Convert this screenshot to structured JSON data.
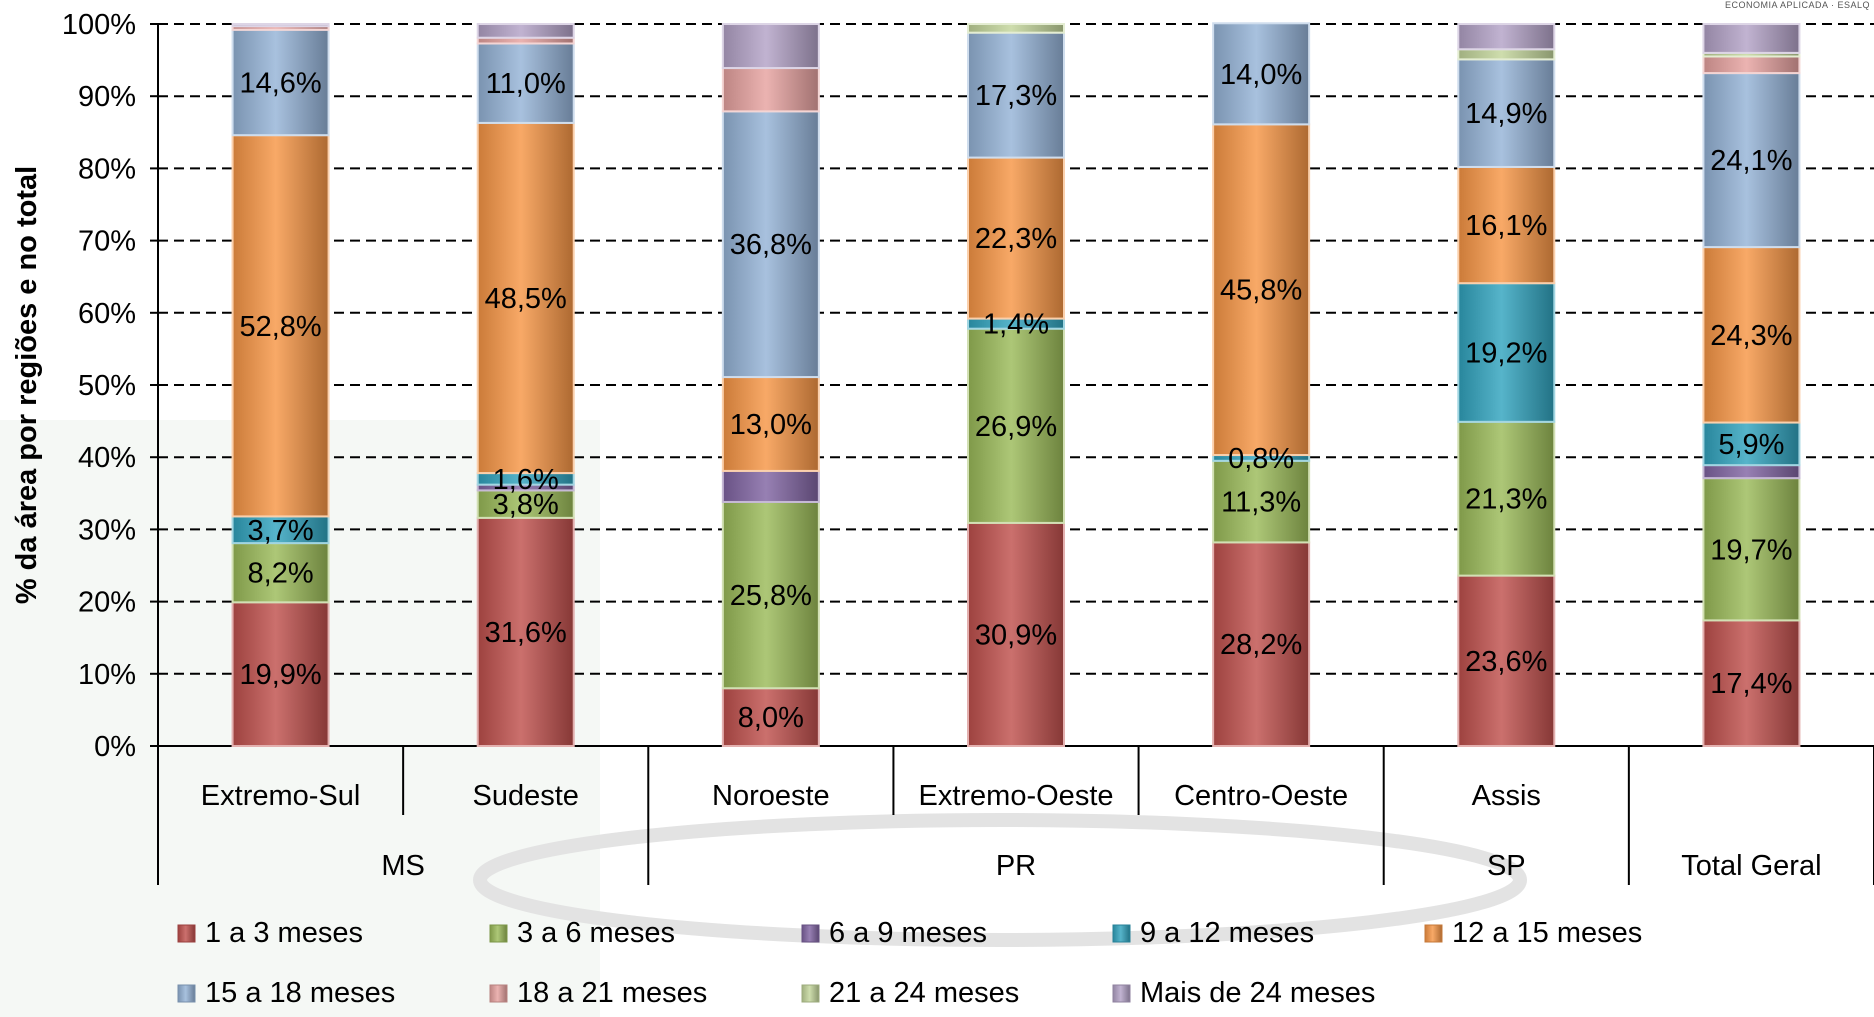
{
  "brand_text": "ECONOMIA APLICADA · ESALQ",
  "chart_data": {
    "type": "bar",
    "stacked": true,
    "percent_stacked": true,
    "title": "",
    "xlabel": "",
    "ylabel": "% da área por regiões e no total",
    "ylim": [
      0,
      100
    ],
    "yticks": [
      "0%",
      "10%",
      "20%",
      "30%",
      "40%",
      "50%",
      "60%",
      "70%",
      "80%",
      "90%",
      "100%"
    ],
    "grid": "horizontal dashed",
    "legend_position": "bottom",
    "categories": [
      "Extremo-Sul",
      "Sudeste",
      "Noroeste",
      "Extremo-Oeste",
      "Centro-Oeste",
      "Assis",
      "Total Geral"
    ],
    "groups": [
      {
        "label": "MS",
        "categories": [
          "Extremo-Sul",
          "Sudeste"
        ]
      },
      {
        "label": "PR",
        "categories": [
          "Noroeste",
          "Extremo-Oeste",
          "Centro-Oeste"
        ]
      },
      {
        "label": "SP",
        "categories": [
          "Assis"
        ]
      },
      {
        "label": "Total Geral",
        "categories": [
          ""
        ]
      }
    ],
    "bar_labels": [
      "Extremo-Sul",
      "Sudeste",
      "Noroeste",
      "Extremo-Oeste",
      "Centro-Oeste",
      "Assis",
      ""
    ],
    "series": [
      {
        "name": "1 a 3 meses",
        "color": "#C0504D",
        "values": [
          19.9,
          31.6,
          8.0,
          30.9,
          28.2,
          23.6,
          17.4
        ],
        "labels": [
          "19,9%",
          "31,6%",
          "8,0%",
          "30,9%",
          "28,2%",
          "23,6%",
          "17,4%"
        ]
      },
      {
        "name": "3 a 6 meses",
        "color": "#9BBB59",
        "values": [
          8.2,
          3.8,
          25.8,
          26.9,
          11.3,
          21.3,
          19.7
        ],
        "labels": [
          "8,2%",
          "3,8%",
          "25,8%",
          "26,9%",
          "11,3%",
          "21,3%",
          "19,7%"
        ]
      },
      {
        "name": "6 a 9 meses",
        "color": "#8064A2",
        "values": [
          0.0,
          0.8,
          4.3,
          0.0,
          0.0,
          0.0,
          1.8
        ],
        "labels": [
          "",
          "",
          "",
          "",
          "",
          "",
          ""
        ]
      },
      {
        "name": "9 a 12 meses",
        "color": "#31A3BE",
        "values": [
          3.7,
          1.6,
          0.0,
          1.4,
          0.8,
          19.2,
          5.9
        ],
        "labels": [
          "3,7%",
          "1,6%",
          "",
          "1,4%",
          "0,8%",
          "19,2%",
          "5,9%"
        ]
      },
      {
        "name": "12 a 15 meses",
        "color": "#F79646",
        "values": [
          52.8,
          48.5,
          13.0,
          22.3,
          45.8,
          16.1,
          24.3
        ],
        "labels": [
          "52,8%",
          "48,5%",
          "13,0%",
          "22,3%",
          "45,8%",
          "16,1%",
          "24,3%"
        ]
      },
      {
        "name": "15 a 18 meses",
        "color": "#95B3D7",
        "values": [
          14.6,
          11.0,
          36.8,
          17.3,
          14.0,
          14.9,
          24.1
        ],
        "labels": [
          "14,6%",
          "11,0%",
          "36,8%",
          "17,3%",
          "14,0%",
          "14,9%",
          "24,1%"
        ]
      },
      {
        "name": "18 a 21 meses",
        "color": "#E6A2A0",
        "values": [
          0.5,
          0.8,
          6.0,
          0.0,
          0.0,
          0.0,
          2.3
        ],
        "labels": [
          "",
          "",
          "",
          "",
          "",
          "",
          ""
        ]
      },
      {
        "name": "21 a 24 meses",
        "color": "#C3D69B",
        "values": [
          0.0,
          0.0,
          0.0,
          1.2,
          0.0,
          1.4,
          0.5
        ],
        "labels": [
          "",
          "",
          "",
          "",
          "",
          "",
          ""
        ]
      },
      {
        "name": "Mais de 24 meses",
        "color": "#B3A2C7",
        "values": [
          0.3,
          1.9,
          6.1,
          0.0,
          0.0,
          3.5,
          4.0
        ],
        "labels": [
          "",
          "",
          "",
          "",
          "",
          "",
          ""
        ]
      }
    ]
  }
}
